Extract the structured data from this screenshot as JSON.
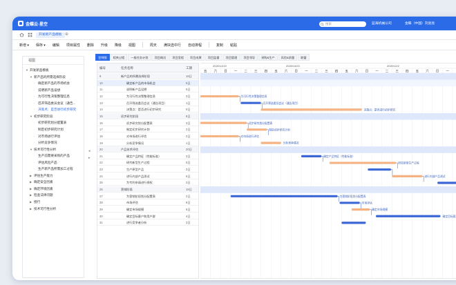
{
  "app": {
    "brand": "金蝶云·星空"
  },
  "search": {
    "placeholder": "搜索"
  },
  "header": {
    "company": "蓝海机械公司",
    "user": "金蝶（中国）刘亮亮"
  },
  "tabs": [
    {
      "label": "开发新产品模板"
    }
  ],
  "toolbar": [
    "新增",
    "保存",
    "编辑",
    "项目属性",
    "删除",
    "升级",
    "降级",
    "视图",
    "周天",
    "满块选中行",
    "自动排程",
    "复制",
    "粘贴"
  ],
  "sidebar": {
    "title": "视图",
    "items": [
      {
        "label": "开发新品模板",
        "level": 0,
        "caret": "▼"
      },
      {
        "label": "新产品的所需选择阶段",
        "level": 1,
        "caret": "▼"
      },
      {
        "label": "确定新产品的市场机会",
        "level": 2,
        "caret": ""
      },
      {
        "label": "说明新产品设想",
        "level": 2,
        "caret": ""
      },
      {
        "label": "为可行性决策整理信息",
        "level": 2,
        "caret": ""
      },
      {
        "label": "召开筛选委员会议（通告...",
        "level": 2,
        "caret": ""
      },
      {
        "label": "决策点：是否进行初步研究",
        "level": 2,
        "caret": "",
        "highlight": true
      },
      {
        "label": "初步研究阶段",
        "level": 1,
        "caret": "▼"
      },
      {
        "label": "初步研究划分配置表",
        "level": 2,
        "caret": ""
      },
      {
        "label": "制定初步研究计划",
        "level": 2,
        "caret": ""
      },
      {
        "label": "对市场进行评估",
        "level": 2,
        "caret": ""
      },
      {
        "label": "分析竞争情况",
        "level": 2,
        "caret": ""
      },
      {
        "label": "技术可行性分析",
        "level": 1,
        "caret": "▼"
      },
      {
        "label": "生产前需要采购的产品",
        "level": 2,
        "caret": ""
      },
      {
        "label": "评估风险产品",
        "level": 2,
        "caret": ""
      },
      {
        "label": "生产新产品所需加工过程",
        "level": 2,
        "caret": ""
      },
      {
        "label": "评估生产能力",
        "level": 1,
        "caret": "▶"
      },
      {
        "label": "确定安全因素",
        "level": 1,
        "caret": "▶"
      },
      {
        "label": "确定环境因素",
        "level": 1,
        "caret": "▶"
      },
      {
        "label": "检查法律问题",
        "level": 1,
        "caret": "▶"
      },
      {
        "label": "授行",
        "level": 1,
        "caret": "▶"
      },
      {
        "label": "技术可行性分析",
        "level": 1,
        "caret": "▶"
      }
    ]
  },
  "subtabs": [
    "甘特图",
    "相关过程",
    "一般任务计划",
    "项目概况",
    "项目里程",
    "项目成果",
    "项目监督",
    "项目管理",
    "项目领导",
    "采购&生产",
    "风险&质量",
    "联盟"
  ],
  "table": {
    "headers": {
      "id": "编号",
      "name": "任务名称",
      "dur": "工期"
    },
    "rows": [
      {
        "id": "9",
        "name": "新产品的所需选择阶段",
        "dur": "18日",
        "indent": 0
      },
      {
        "id": "10",
        "name": "确定新产品的市场机会",
        "dur": "5日",
        "indent": 1,
        "selected": true
      },
      {
        "id": "11",
        "name": "说明新产品设想",
        "dur": "5日",
        "indent": 1
      },
      {
        "id": "12",
        "name": "为可行性决策整理信息",
        "dur": "3日",
        "indent": 1
      },
      {
        "id": "13",
        "name": "召开筛选委员会议（通告项目）",
        "dur": "1日",
        "indent": 1
      },
      {
        "id": "14",
        "name": "决策点：是否进行初步研究",
        "dur": "0日",
        "indent": 1
      },
      {
        "id": "15",
        "name": "初步研究阶段",
        "dur": "8日",
        "indent": 0
      },
      {
        "id": "16",
        "name": "初步研究划分配置表",
        "dur": "3日",
        "indent": 1
      },
      {
        "id": "17",
        "name": "制定初步研究计划",
        "dur": "2日",
        "indent": 1
      },
      {
        "id": "18",
        "name": "对市场进行评估",
        "dur": "2日",
        "indent": 1
      },
      {
        "id": "19",
        "name": "分析竞争情况",
        "dur": "1日",
        "indent": 1
      },
      {
        "id": "20",
        "name": "产品技术评估",
        "dur": "20日",
        "indent": 0
      },
      {
        "id": "21",
        "name": "确定产品特征（性能标准）",
        "dur": "3日",
        "indent": 1
      },
      {
        "id": "22",
        "name": "研究新型生产过程",
        "dur": "5日",
        "indent": 1
      },
      {
        "id": "23",
        "name": "生产原型产品",
        "dur": "3日",
        "indent": 1
      },
      {
        "id": "24",
        "name": "进行内部产品测试",
        "dur": "5日",
        "indent": 1
      },
      {
        "id": "25",
        "name": "为专利申请进行授权",
        "dur": "3日",
        "indent": 1
      },
      {
        "id": "26",
        "name": "营销阶段",
        "dur": "18日",
        "indent": 0
      },
      {
        "id": "27",
        "name": "为营销阶段划分配置表",
        "dur": "2日",
        "indent": 1
      },
      {
        "id": "28",
        "name": "市场评估",
        "dur": "8日",
        "indent": 1
      },
      {
        "id": "29",
        "name": "确定市场规模",
        "dur": "5日",
        "indent": 1
      },
      {
        "id": "30",
        "name": "确定目标客户和用户群",
        "dur": "4日",
        "indent": 1
      },
      {
        "id": "31",
        "name": "进行竞争者分析",
        "dur": "3日",
        "indent": 1
      }
    ]
  },
  "timeline": {
    "weeks": [
      "2020/11/19",
      "2020/11/23",
      "2020/12/2",
      "2020/12/9",
      "2020/12/14"
    ],
    "days": [
      "五",
      "六",
      "日",
      "一",
      "二",
      "三",
      "四",
      "五",
      "六",
      "日",
      "一",
      "二",
      "三",
      "四",
      "五",
      "六",
      "日",
      "一",
      "二",
      "三",
      "四",
      "五",
      "六",
      "日",
      "一",
      "二",
      "三"
    ]
  },
  "gantt_labels": [
    {
      "text": "为可行性决策整理信息",
      "row": 12
    },
    {
      "text": "召开筛选委员会议（通告项目）",
      "row": 13
    },
    {
      "text": "决策点：是否进行初步研究",
      "row": 14
    },
    {
      "text": "初步研究划分配置表",
      "row": 16
    },
    {
      "text": "制定初步研究计划",
      "row": 17
    },
    {
      "text": "对市场进行评估",
      "row": 18
    },
    {
      "text": "分析竞争情况",
      "row": 19
    },
    {
      "text": "确定产品特征（性能标准）",
      "row": 21
    },
    {
      "text": "研究新型生产过程",
      "row": 22
    },
    {
      "text": "进行内部产品测试",
      "row": 24
    },
    {
      "text": "为专利申请进行授权",
      "row": 25
    },
    {
      "text": "为营销阶段划分配置表",
      "row": 27
    },
    {
      "text": "市场评估",
      "row": 28
    },
    {
      "text": "确定市场规模",
      "row": 29
    },
    {
      "text": "确定目标客户和用户群",
      "row": 30
    }
  ],
  "colors": {
    "accent": "#2c6be8",
    "bar_blue": "#3a66d6",
    "bar_orange": "#f5b283",
    "summary_band": "#dfe8fb"
  }
}
